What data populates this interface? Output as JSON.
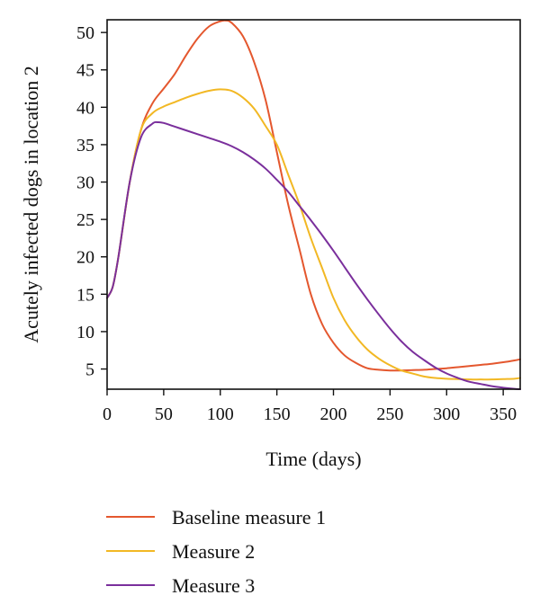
{
  "chart_data": {
    "type": "line",
    "xlabel": "Time (days)",
    "ylabel": "Acutely infected dogs in location 2",
    "xlim": [
      0,
      365
    ],
    "ylim": [
      2.3,
      51.7
    ],
    "xticks": [
      0,
      50,
      100,
      150,
      200,
      250,
      300,
      350
    ],
    "yticks": [
      5,
      10,
      15,
      20,
      25,
      30,
      35,
      40,
      45,
      50
    ],
    "grid": false,
    "legend_position": "bottom",
    "series": [
      {
        "name": "Baseline measure 1",
        "color": "#e4572e",
        "x": [
          0,
          5,
          10,
          20,
          30,
          40,
          50,
          60,
          70,
          80,
          90,
          100,
          105,
          110,
          120,
          130,
          140,
          150,
          160,
          170,
          180,
          190,
          200,
          210,
          220,
          230,
          240,
          250,
          260,
          270,
          280,
          290,
          300,
          310,
          320,
          330,
          340,
          350,
          360,
          365
        ],
        "y": [
          14.5,
          16,
          20,
          30,
          37,
          40.5,
          42.5,
          44.5,
          47,
          49.2,
          50.8,
          51.5,
          51.6,
          51.3,
          49.5,
          46,
          41,
          34,
          27,
          21,
          15,
          11,
          8.5,
          6.8,
          5.8,
          5.1,
          4.9,
          4.8,
          4.8,
          4.85,
          4.9,
          5.0,
          5.1,
          5.25,
          5.4,
          5.55,
          5.7,
          5.9,
          6.15,
          6.3
        ]
      },
      {
        "name": "Measure 2",
        "color": "#f2b824",
        "x": [
          0,
          5,
          10,
          20,
          30,
          40,
          50,
          60,
          70,
          80,
          90,
          100,
          110,
          120,
          130,
          140,
          150,
          160,
          170,
          180,
          190,
          200,
          210,
          220,
          230,
          240,
          250,
          260,
          270,
          280,
          290,
          300,
          310,
          320,
          330,
          340,
          350,
          360,
          365
        ],
        "y": [
          14.5,
          16,
          20,
          30,
          37,
          39.2,
          40.1,
          40.7,
          41.3,
          41.8,
          42.2,
          42.4,
          42.2,
          41.3,
          39.8,
          37.5,
          35,
          31,
          27,
          22.5,
          18.5,
          14.5,
          11.5,
          9.3,
          7.6,
          6.4,
          5.5,
          4.8,
          4.4,
          4.0,
          3.8,
          3.7,
          3.65,
          3.6,
          3.6,
          3.6,
          3.65,
          3.7,
          3.8
        ]
      },
      {
        "name": "Measure 3",
        "color": "#7a2f9c",
        "x": [
          0,
          5,
          10,
          20,
          30,
          40,
          45,
          50,
          60,
          70,
          80,
          90,
          100,
          110,
          120,
          130,
          140,
          150,
          160,
          170,
          180,
          190,
          200,
          210,
          220,
          230,
          240,
          250,
          260,
          270,
          280,
          290,
          300,
          310,
          320,
          330,
          340,
          350,
          360,
          365
        ],
        "y": [
          14.5,
          16,
          20,
          30,
          36,
          37.8,
          38.0,
          37.9,
          37.4,
          36.9,
          36.4,
          35.9,
          35.4,
          34.8,
          34.0,
          33.0,
          31.8,
          30.3,
          28.7,
          26.8,
          24.9,
          22.9,
          20.8,
          18.6,
          16.4,
          14.3,
          12.3,
          10.4,
          8.7,
          7.3,
          6.2,
          5.2,
          4.4,
          3.8,
          3.3,
          3.0,
          2.7,
          2.5,
          2.35,
          2.3
        ]
      }
    ]
  }
}
